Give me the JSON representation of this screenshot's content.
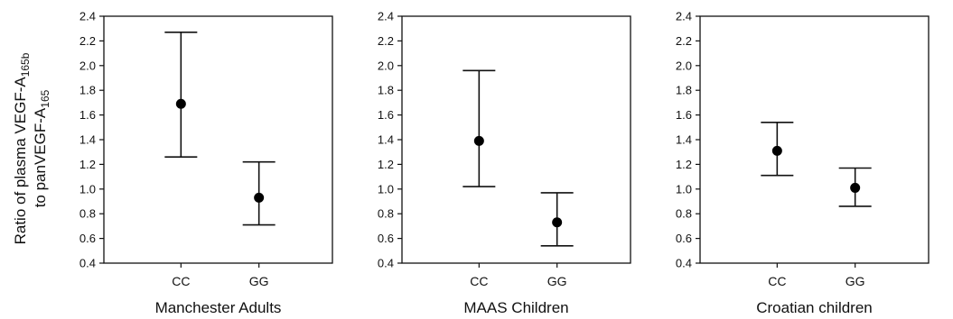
{
  "chart_data": [
    {
      "type": "scatter",
      "title": "Manchester Adults",
      "categories": [
        "CC",
        "GG"
      ],
      "values": [
        1.69,
        0.93
      ],
      "error_low": [
        1.26,
        0.71
      ],
      "error_high": [
        2.27,
        1.22
      ],
      "ylabel": "Ratio of plasma VEGF-A165b to panVEGF-A165",
      "ylim": [
        0.4,
        2.4
      ],
      "yticks": [
        "0.4",
        "0.6",
        "0.8",
        "1.0",
        "1.2",
        "1.4",
        "1.6",
        "1.8",
        "2.0",
        "2.2",
        "2.4"
      ]
    },
    {
      "type": "scatter",
      "title": "MAAS Children",
      "categories": [
        "CC",
        "GG"
      ],
      "values": [
        1.39,
        0.73
      ],
      "error_low": [
        1.02,
        0.54
      ],
      "error_high": [
        1.96,
        0.97
      ],
      "ylim": [
        0.4,
        2.4
      ],
      "yticks": [
        "0.4",
        "0.6",
        "0.8",
        "1.0",
        "1.2",
        "1.4",
        "1.6",
        "1.8",
        "2.0",
        "2.2",
        "2.4"
      ]
    },
    {
      "type": "scatter",
      "title": "Croatian children",
      "categories": [
        "CC",
        "GG"
      ],
      "values": [
        1.31,
        1.01
      ],
      "error_low": [
        1.11,
        0.86
      ],
      "error_high": [
        1.54,
        1.17
      ],
      "ylim": [
        0.4,
        2.4
      ],
      "yticks": [
        "0.4",
        "0.6",
        "0.8",
        "1.0",
        "1.2",
        "1.4",
        "1.6",
        "1.8",
        "2.0",
        "2.2",
        "2.4"
      ]
    }
  ],
  "ylabel_parts": {
    "line1_main": "Ratio of plasma VEGF-A",
    "line1_sub": "165b",
    "line2_main": "to panVEGF-A",
    "line2_sub": "165"
  }
}
